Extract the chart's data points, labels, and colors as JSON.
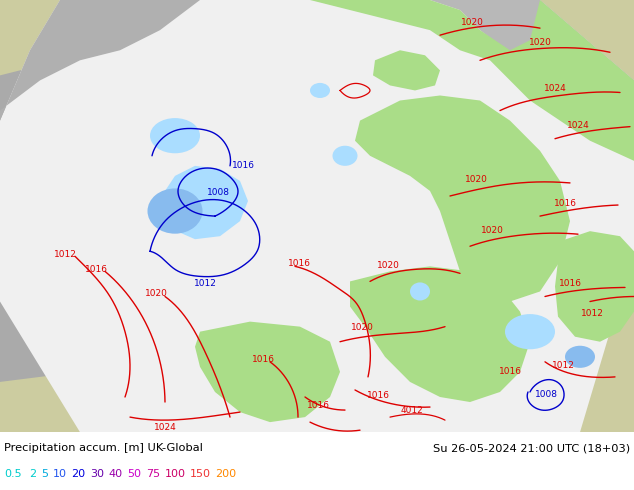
{
  "title_left": "Precipitation accum. [m] UK-Global",
  "title_right": "Su 26-05-2024 21:00 UTC (18+03)",
  "legend_values": [
    "0.5",
    "2",
    "5",
    "10",
    "20",
    "30",
    "40",
    "50",
    "75",
    "100",
    "150",
    "200"
  ],
  "legend_colors": [
    "#00cccc",
    "#00cccc",
    "#00aadd",
    "#2255ee",
    "#0000dd",
    "#6600aa",
    "#9900aa",
    "#cc00cc",
    "#cc0099",
    "#cc0066",
    "#ee3333",
    "#ff8800"
  ],
  "bg_color": "#ffffff",
  "gray_outside": "#aaaaaa",
  "land_color": "#cccca0",
  "sea_color": "#b0bfc8",
  "white_domain": "#f0f0f0",
  "green_precip": "#aadd88",
  "blue_precip_light": "#aaddff",
  "blue_precip_med": "#88bbee",
  "isobar_red": "#dd0000",
  "isobar_blue": "#0000cc",
  "fig_width": 6.34,
  "fig_height": 4.9,
  "dpi": 100
}
